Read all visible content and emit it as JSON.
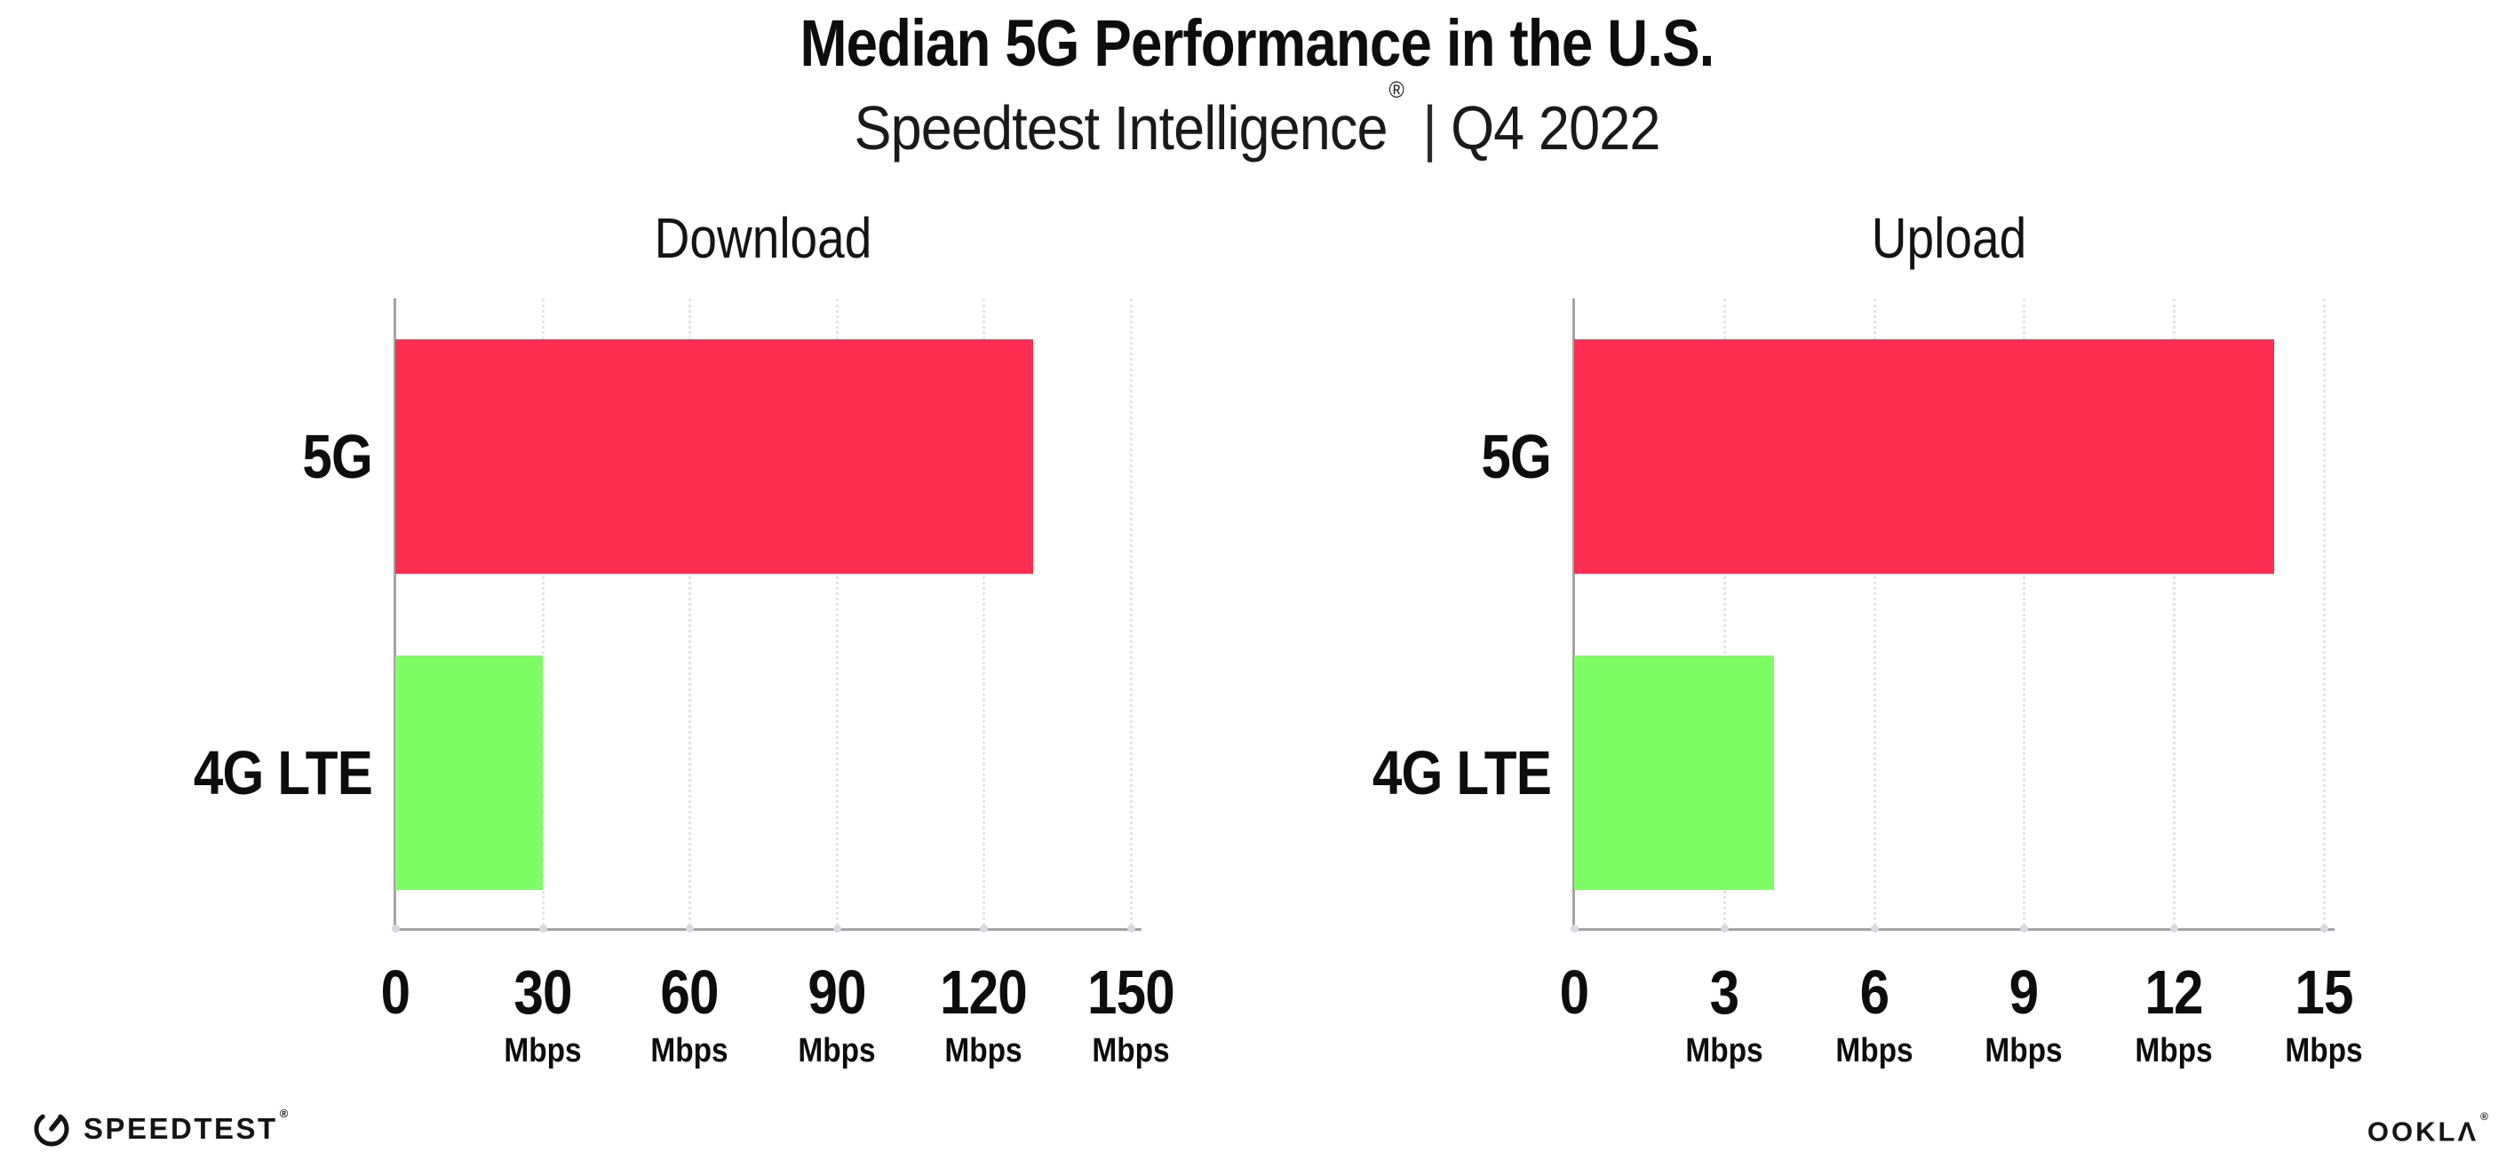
{
  "header": {
    "title": "Median 5G Performance in the U.S.",
    "subtitle_brand": "Speedtest Intelligence",
    "subtitle_reg": "®",
    "subtitle_divider": "|",
    "subtitle_period": "Q4 2022"
  },
  "chart_data": [
    {
      "type": "bar",
      "orientation": "horizontal",
      "title": "Download",
      "categories": [
        "5G",
        "4G LTE"
      ],
      "values": [
        130,
        30
      ],
      "unit": "Mbps",
      "xlim": [
        0,
        150
      ],
      "xticks": [
        0,
        30,
        60,
        90,
        120,
        150
      ],
      "bar_colors": [
        "#FF2D52",
        "#7FFD64"
      ],
      "grid": "dotted-vertical-at-ticks",
      "legend": "none",
      "data_labels": false
    },
    {
      "type": "bar",
      "orientation": "horizontal",
      "title": "Upload",
      "categories": [
        "5G",
        "4G LTE"
      ],
      "values": [
        14,
        4
      ],
      "unit": "Mbps",
      "xlim": [
        0,
        15
      ],
      "xticks": [
        0,
        3,
        6,
        9,
        12,
        15
      ],
      "bar_colors": [
        "#FF2D52",
        "#7FFD64"
      ],
      "grid": "dotted-vertical-at-ticks",
      "legend": "none",
      "data_labels": false
    }
  ],
  "colors": {
    "bar_5g": "#FF2D52",
    "bar_4g_lte": "#7FFD64",
    "gridline": "#E4E4EE",
    "axis": "#A3A3A3",
    "text": "#0D0D0D"
  },
  "footer": {
    "speedtest_label": "SPEEDTEST",
    "speedtest_reg": "®",
    "ookla_label": "OOKLΛ",
    "ookla_reg": "®"
  }
}
